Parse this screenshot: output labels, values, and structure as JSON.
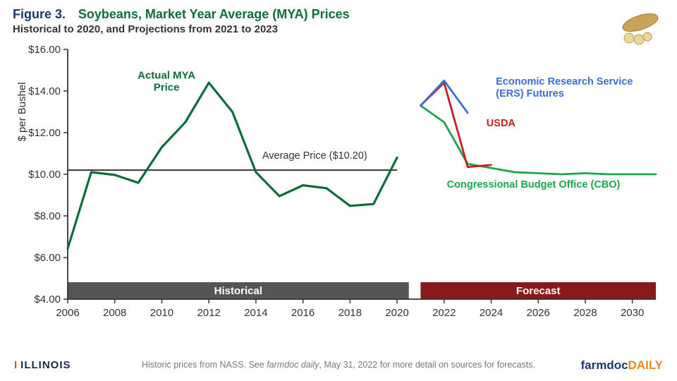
{
  "header": {
    "figure_label": "Figure 3.",
    "title": "Soybeans, Market Year Average (MYA) Prices",
    "subtitle": "Historical to 2020, and Projections from 2021 to 2023"
  },
  "chart": {
    "type": "line",
    "y_axis": {
      "label": "$ per Bushel",
      "min": 4,
      "max": 16,
      "tick_step": 2,
      "tick_prefix": "$",
      "tick_decimals": 2,
      "label_fontsize": 15,
      "tick_fontsize": 15,
      "tick_color": "#333"
    },
    "x_axis": {
      "min": 2006,
      "max": 2031,
      "tick_start": 2006,
      "tick_step": 2,
      "tick_end": 2030,
      "tick_fontsize": 15,
      "tick_color": "#333"
    },
    "background_color": "#ffffff",
    "axis_color": "#333333",
    "series": {
      "actual": {
        "label": "Actual MYA Price",
        "color": "#0b6e3a",
        "width": 3.2,
        "points": [
          [
            2006,
            6.43
          ],
          [
            2007,
            10.1
          ],
          [
            2008,
            9.97
          ],
          [
            2009,
            9.59
          ],
          [
            2010,
            11.3
          ],
          [
            2011,
            12.5
          ],
          [
            2012,
            14.4
          ],
          [
            2013,
            13.0
          ],
          [
            2014,
            10.1
          ],
          [
            2015,
            8.95
          ],
          [
            2016,
            9.47
          ],
          [
            2017,
            9.33
          ],
          [
            2018,
            8.48
          ],
          [
            2019,
            8.57
          ],
          [
            2020,
            10.8
          ]
        ]
      },
      "avg_line": {
        "label": "Average Price ($10.20)",
        "color": "#333333",
        "width": 2,
        "y": 10.2,
        "x_from": 2006,
        "x_to": 2020
      },
      "ers": {
        "label": "Economic Research Service (ERS) Futures",
        "color": "#3a6fd8",
        "width": 2.8,
        "points": [
          [
            2021,
            13.3
          ],
          [
            2022,
            14.5
          ],
          [
            2023,
            12.95
          ]
        ]
      },
      "usda": {
        "label": "USDA",
        "color": "#c81e1e",
        "width": 2.8,
        "points": [
          [
            2021,
            13.3
          ],
          [
            2022,
            14.4
          ],
          [
            2023,
            10.35
          ],
          [
            2024,
            10.45
          ]
        ]
      },
      "cbo": {
        "label": "Congressional Budget Office (CBO)",
        "color": "#1aa64a",
        "width": 2.8,
        "points": [
          [
            2021,
            13.3
          ],
          [
            2022,
            12.5
          ],
          [
            2023,
            10.5
          ],
          [
            2024,
            10.3
          ],
          [
            2025,
            10.1
          ],
          [
            2026,
            10.05
          ],
          [
            2027,
            10.0
          ],
          [
            2028,
            10.05
          ],
          [
            2029,
            10.0
          ],
          [
            2030,
            10.0
          ],
          [
            2031,
            10.0
          ]
        ]
      }
    },
    "bands": {
      "historical": {
        "label": "Historical",
        "x_from": 2006,
        "x_to": 2020.5,
        "fill": "#555555",
        "text_color": "#ffffff"
      },
      "forecast": {
        "label": "Forecast",
        "x_from": 2021,
        "x_to": 2031,
        "fill": "#8a1a1a",
        "text_color": "#ffffff"
      }
    },
    "annotations": {
      "actual_label_at": [
        2010.2,
        14.6
      ],
      "avg_label_at": [
        2016.5,
        10.75
      ],
      "ers_label_at": [
        2024.2,
        14.3
      ],
      "usda_label_at": [
        2023.8,
        12.3
      ],
      "cbo_label_at": [
        2025.8,
        9.35
      ]
    }
  },
  "footer": {
    "illinois": "ILLINOIS",
    "note_plain1": "Historic prices from NASS.  See ",
    "note_italic": "farmdoc daily",
    "note_plain2": ", May 31, 2022 for more detail on sources for forecasts.",
    "logo_part1": "farmdoc",
    "logo_part2": "DAILY"
  }
}
